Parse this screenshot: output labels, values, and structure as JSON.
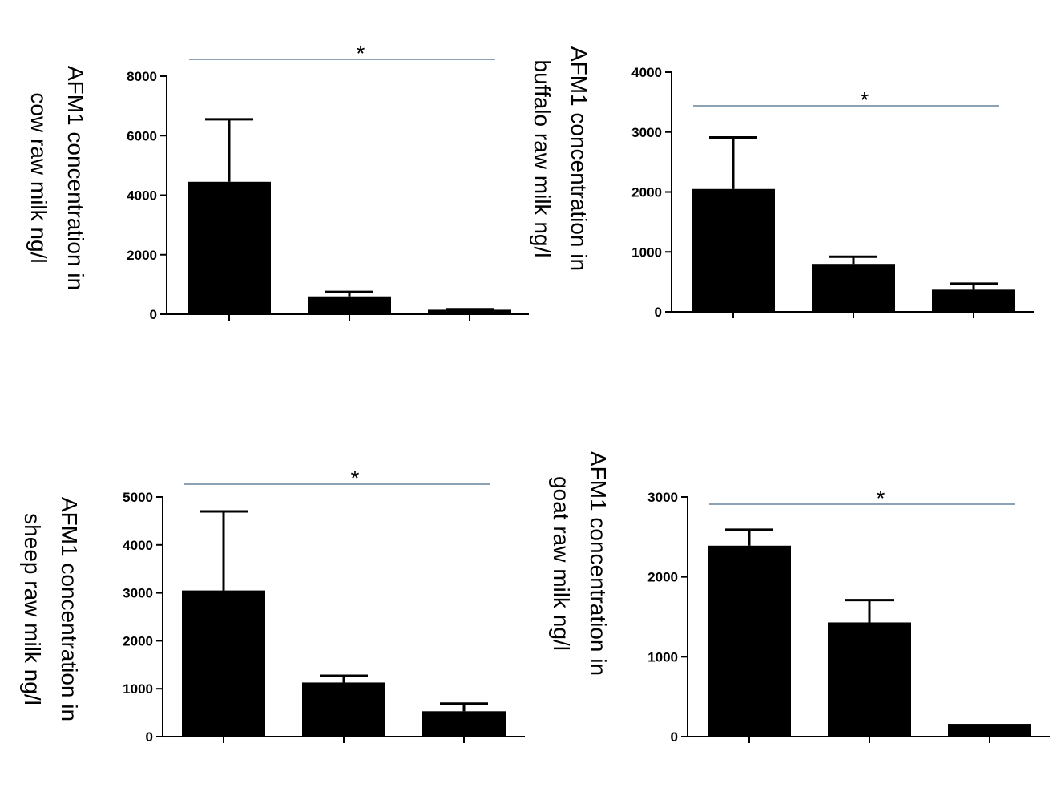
{
  "chart_data": [
    {
      "type": "bar",
      "ylabel_lines": [
        "AFM1 concentration in",
        "cow raw milk ng/l"
      ],
      "ylim": [
        0,
        8000
      ],
      "yticks": [
        "0",
        "2000",
        "4000",
        "6000",
        "8000"
      ],
      "categories": [
        "",
        "",
        ""
      ],
      "values": [
        4450,
        600,
        150
      ],
      "errors": [
        2100,
        150,
        20
      ],
      "significance": "*",
      "colors": {
        "bar": "#000000",
        "bracket": "#4a6a8a"
      }
    },
    {
      "type": "bar",
      "ylabel_lines": [
        "AFM1 concentration in",
        "buffalo raw milk ng/l"
      ],
      "ylim": [
        0,
        4000
      ],
      "yticks": [
        "0",
        "1000",
        "2000",
        "3000",
        "4000"
      ],
      "categories": [
        "",
        "",
        ""
      ],
      "values": [
        2050,
        800,
        370
      ],
      "errors": [
        860,
        120,
        100
      ],
      "significance": "*",
      "colors": {
        "bar": "#000000",
        "bracket": "#4a6a8a"
      }
    },
    {
      "type": "bar",
      "ylabel_lines": [
        "AFM1 concentration in",
        "sheep raw milk  ng/l"
      ],
      "ylim": [
        0,
        5000
      ],
      "yticks": [
        "0",
        "1000",
        "2000",
        "3000",
        "4000",
        "5000"
      ],
      "categories": [
        "",
        "",
        ""
      ],
      "values": [
        3050,
        1130,
        530
      ],
      "errors": [
        1650,
        140,
        160
      ],
      "significance": "*",
      "colors": {
        "bar": "#000000",
        "bracket": "#4a6a8a"
      }
    },
    {
      "type": "bar",
      "ylabel_lines": [
        "AFM1 concentration in",
        "goat raw milk ng/l"
      ],
      "ylim": [
        0,
        3000
      ],
      "yticks": [
        "0",
        "1000",
        "2000",
        "3000"
      ],
      "categories": [
        "",
        "",
        ""
      ],
      "values": [
        2390,
        1430,
        160
      ],
      "errors": [
        200,
        280,
        0
      ],
      "significance": "*",
      "colors": {
        "bar": "#000000",
        "bracket": "#4a6a8a"
      }
    }
  ]
}
